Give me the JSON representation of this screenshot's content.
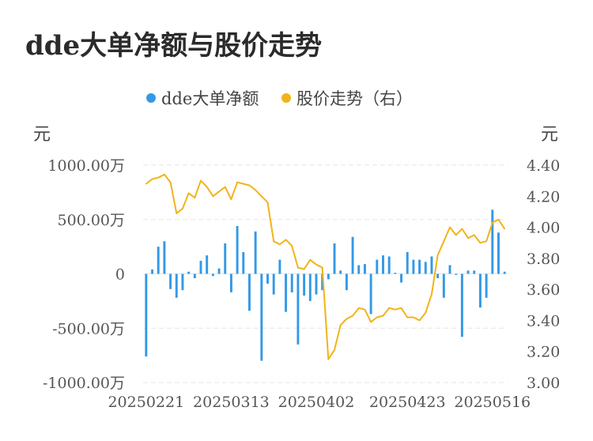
{
  "title": "dde大单净额与股价走势",
  "legend": {
    "bar_label": "dde大单净额",
    "line_label": "股价走势（右）",
    "bar_color": "#3399e6",
    "line_color": "#f2b31a"
  },
  "axes": {
    "left_unit": "元",
    "right_unit": "元",
    "left_ticks": [
      "1000.00万",
      "500.00万",
      "0",
      "-500.00万",
      "-1000.00万"
    ],
    "right_ticks": [
      "4.40",
      "4.20",
      "4.00",
      "3.80",
      "3.60",
      "3.40",
      "3.20",
      "3.00"
    ],
    "x_ticks": [
      "20250221",
      "20250313",
      "20250402",
      "20250423",
      "20250516"
    ]
  },
  "chart_data": {
    "type": "bar+line",
    "title": "dde大单净额与股价走势",
    "left_ylim": [
      -1000,
      1000
    ],
    "left_unit": "万",
    "right_ylim": [
      3.0,
      4.4
    ],
    "grid": true,
    "legend_position": "top",
    "x_tick_labels": [
      "20250221",
      "20250313",
      "20250402",
      "20250423",
      "20250516"
    ],
    "series": [
      {
        "name": "dde大单净额",
        "type": "bar",
        "axis": "left",
        "values": [
          -760,
          40,
          250,
          300,
          -140,
          -220,
          -150,
          20,
          -40,
          120,
          170,
          -20,
          50,
          280,
          -170,
          440,
          200,
          -340,
          390,
          -800,
          -90,
          -190,
          130,
          -350,
          -170,
          -650,
          -200,
          -250,
          -190,
          -150,
          -50,
          280,
          30,
          -150,
          340,
          80,
          90,
          -370,
          130,
          170,
          160,
          10,
          -80,
          200,
          130,
          130,
          110,
          160,
          -40,
          -220,
          80,
          -10,
          -580,
          30,
          30,
          -310,
          -220,
          590,
          380,
          20
        ]
      },
      {
        "name": "股价走势（右）",
        "type": "line",
        "axis": "right",
        "values": [
          4.28,
          4.31,
          4.32,
          4.34,
          4.29,
          4.09,
          4.12,
          4.22,
          4.19,
          4.3,
          4.26,
          4.2,
          4.23,
          4.26,
          4.18,
          4.29,
          4.28,
          4.27,
          4.24,
          4.2,
          4.16,
          3.91,
          3.89,
          3.92,
          3.88,
          3.74,
          3.73,
          3.79,
          3.76,
          3.74,
          3.15,
          3.21,
          3.37,
          3.41,
          3.43,
          3.48,
          3.47,
          3.39,
          3.42,
          3.43,
          3.48,
          3.47,
          3.48,
          3.42,
          3.42,
          3.4,
          3.45,
          3.57,
          3.82,
          3.91,
          4.0,
          3.95,
          3.99,
          3.93,
          3.95,
          3.9,
          3.91,
          4.03,
          4.05,
          3.99
        ]
      }
    ]
  }
}
